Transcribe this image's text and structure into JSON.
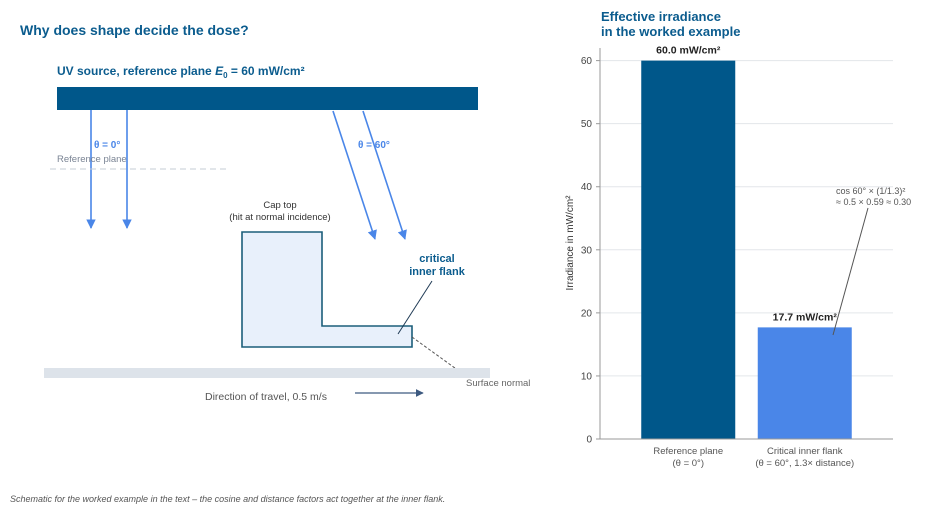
{
  "left": {
    "title": "Why does shape decide the dose?",
    "source_label_prefix": "UV source, reference plane ",
    "source_label_symbol": "E",
    "source_label_sub": "0",
    "source_label_suffix": " = 60 mW/cm²",
    "theta0_label": "θ = 0°",
    "theta60_label": "θ = 60°",
    "reference_plane_label": "Reference plane",
    "cap_top_label_1": "Cap top",
    "cap_top_label_2": "(hit at normal incidence)",
    "critical_label_1": "critical",
    "critical_label_2": "inner flank",
    "surface_normal_label": "Surface normal",
    "travel_label": "Direction of travel, 0.5 m/s",
    "caption": "Schematic for the worked example in the text – the cosine and distance factors act together at the inner flank."
  },
  "colors": {
    "dark_blue": "#00578a",
    "light_blue": "#4a86e8",
    "title_blue": "#0b5c8e",
    "part_fill": "#e8f0fb",
    "floor": "#dde3ea"
  },
  "chart_data": {
    "type": "bar",
    "title_line1": "Effective irradiance",
    "title_line2": "in the worked example",
    "ylabel": "Irradiance in mW/cm²",
    "ylim": [
      0,
      62
    ],
    "yticks": [
      0,
      10,
      20,
      30,
      40,
      50,
      60
    ],
    "grid": true,
    "categories": [
      {
        "line1": "Reference plane",
        "line2": "(θ = 0°)"
      },
      {
        "line1": "Critical inner flank",
        "line2": "(θ = 60°, 1.3× distance)"
      }
    ],
    "values": [
      60.0,
      17.7
    ],
    "value_labels": [
      "60.0 mW/cm²",
      "17.7 mW/cm²"
    ],
    "bar_colors": [
      "#00578a",
      "#4a86e8"
    ],
    "annotation_line1": "cos 60° × (1/1.3)²",
    "annotation_line2": "≈ 0.5 × 0.59 ≈ 0.30"
  }
}
